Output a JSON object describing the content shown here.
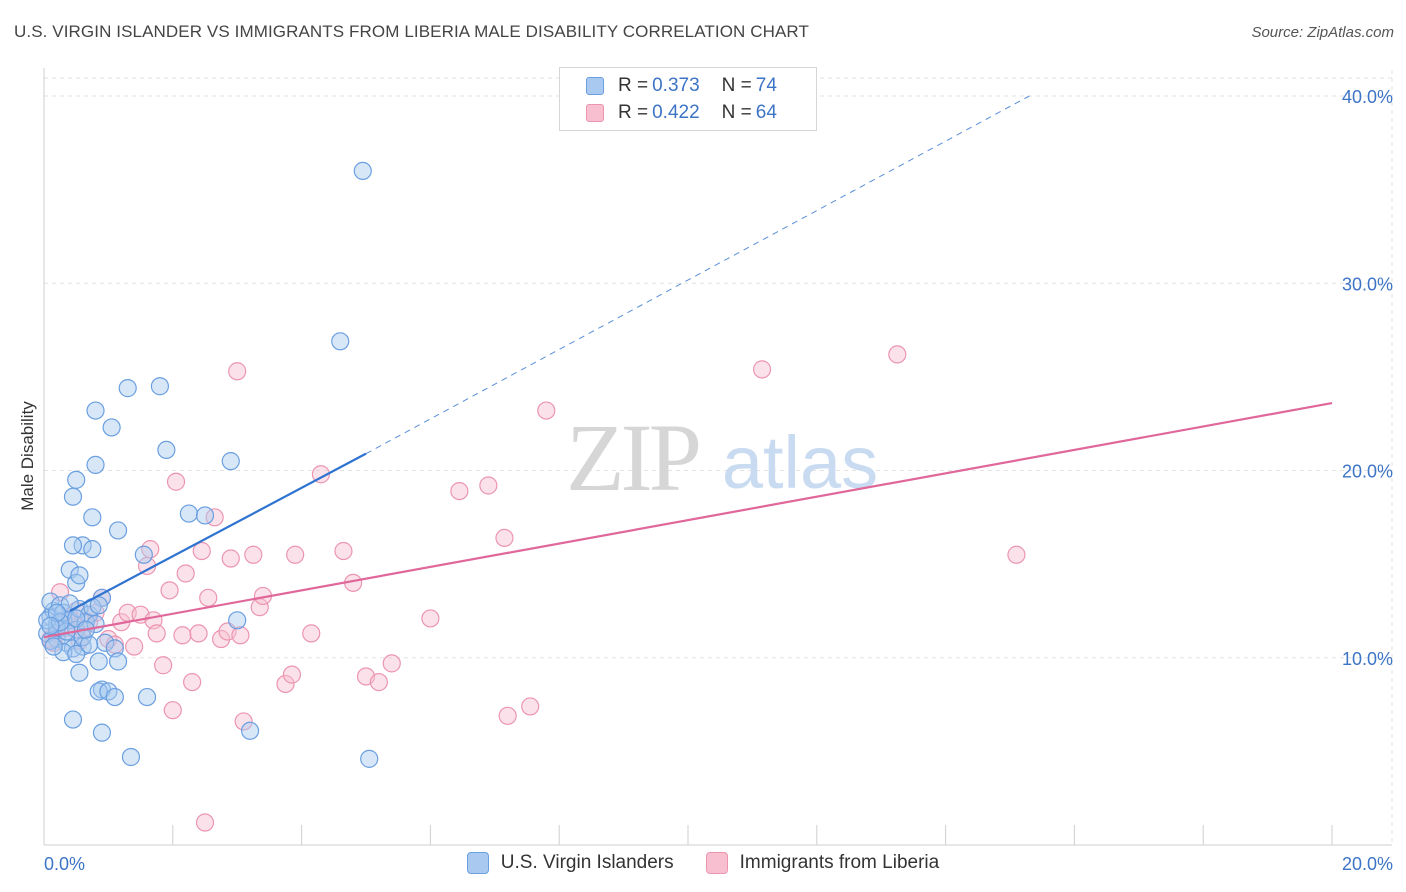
{
  "header": {
    "title": "U.S. VIRGIN ISLANDER VS IMMIGRANTS FROM LIBERIA MALE DISABILITY CORRELATION CHART",
    "source": "Source: ZipAtlas.com"
  },
  "watermark": {
    "zip": "ZIP",
    "atlas": "atlas"
  },
  "legend_top": [
    {
      "r_label": "R = ",
      "r_value": "0.373",
      "n_label": "N = ",
      "n_value": "74"
    },
    {
      "r_label": "R = ",
      "r_value": "0.422",
      "n_label": "N = ",
      "n_value": "64"
    }
  ],
  "colors": {
    "blue_fill": "#a9c9f0",
    "blue_stroke": "#6a9fe0",
    "blue_line": "#2f73d1",
    "pink_fill": "#f7bfd0",
    "pink_stroke": "#ec95b0",
    "pink_line": "#e0679a",
    "tick_text": "#3d74c6",
    "grid": "#e2e2e2"
  },
  "chart_data": {
    "type": "scatter",
    "title": "U.S. VIRGIN ISLANDER VS IMMIGRANTS FROM LIBERIA MALE DISABILITY CORRELATION CHART",
    "xlabel": "",
    "ylabel": "Male Disability",
    "xlim": [
      0,
      20
    ],
    "ylim": [
      0,
      40
    ],
    "x_tick_labels": [
      "0.0%",
      "20.0%"
    ],
    "y_ticks": [
      10,
      20,
      30,
      40
    ],
    "y_tick_labels": [
      "10.0%",
      "20.0%",
      "30.0%",
      "40.0%"
    ],
    "grid": true,
    "legend_position": "bottom",
    "series": [
      {
        "name": "U.S. Virgin Islanders",
        "color": "#6a9fe0",
        "points": [
          [
            0.1,
            12.2
          ],
          [
            0.15,
            12.5
          ],
          [
            0.2,
            11.8
          ],
          [
            0.3,
            12.0
          ],
          [
            0.1,
            13.0
          ],
          [
            0.25,
            12.8
          ],
          [
            0.4,
            12.0
          ],
          [
            0.5,
            11.5
          ],
          [
            0.05,
            11.3
          ],
          [
            0.2,
            11.0
          ],
          [
            0.35,
            10.8
          ],
          [
            0.45,
            10.5
          ],
          [
            0.6,
            10.6
          ],
          [
            0.55,
            12.6
          ],
          [
            0.7,
            12.3
          ],
          [
            0.65,
            11.9
          ],
          [
            0.8,
            11.8
          ],
          [
            0.9,
            13.2
          ],
          [
            0.75,
            12.7
          ],
          [
            0.3,
            10.3
          ],
          [
            0.5,
            10.2
          ],
          [
            0.55,
            9.2
          ],
          [
            0.95,
            10.8
          ],
          [
            1.1,
            10.5
          ],
          [
            1.15,
            9.8
          ],
          [
            0.85,
            9.8
          ],
          [
            0.4,
            14.7
          ],
          [
            0.5,
            14.0
          ],
          [
            0.55,
            14.4
          ],
          [
            0.6,
            16.0
          ],
          [
            0.75,
            15.8
          ],
          [
            0.45,
            16.0
          ],
          [
            0.75,
            17.5
          ],
          [
            1.15,
            16.8
          ],
          [
            0.45,
            18.6
          ],
          [
            0.5,
            19.5
          ],
          [
            0.8,
            20.3
          ],
          [
            0.8,
            23.2
          ],
          [
            1.05,
            22.3
          ],
          [
            1.3,
            24.4
          ],
          [
            1.8,
            24.5
          ],
          [
            1.9,
            21.1
          ],
          [
            2.25,
            17.7
          ],
          [
            2.5,
            17.6
          ],
          [
            2.9,
            20.5
          ],
          [
            1.55,
            15.5
          ],
          [
            3.0,
            12.0
          ],
          [
            0.9,
            8.3
          ],
          [
            0.85,
            8.2
          ],
          [
            1.0,
            8.2
          ],
          [
            1.1,
            7.9
          ],
          [
            1.6,
            7.9
          ],
          [
            0.45,
            6.7
          ],
          [
            0.9,
            6.0
          ],
          [
            1.35,
            4.7
          ],
          [
            3.2,
            6.1
          ],
          [
            5.05,
            4.6
          ],
          [
            4.6,
            26.9
          ],
          [
            4.95,
            36.0
          ],
          [
            0.1,
            10.9
          ],
          [
            0.2,
            11.6
          ],
          [
            0.3,
            12.4
          ],
          [
            0.15,
            10.6
          ],
          [
            0.35,
            11.4
          ],
          [
            0.4,
            12.9
          ],
          [
            0.6,
            11.1
          ],
          [
            0.7,
            10.7
          ],
          [
            0.05,
            12.0
          ],
          [
            0.25,
            11.9
          ],
          [
            0.5,
            12.1
          ],
          [
            0.65,
            11.5
          ],
          [
            0.85,
            12.8
          ],
          [
            0.2,
            12.4
          ],
          [
            0.1,
            11.7
          ]
        ]
      },
      {
        "name": "Immigrants from Liberia",
        "color": "#ec95b0",
        "points": [
          [
            0.1,
            11.0
          ],
          [
            0.2,
            11.3
          ],
          [
            0.3,
            11.8
          ],
          [
            0.4,
            12.2
          ],
          [
            0.5,
            12.5
          ],
          [
            0.15,
            10.8
          ],
          [
            0.6,
            11.5
          ],
          [
            0.7,
            11.9
          ],
          [
            0.8,
            12.4
          ],
          [
            0.9,
            13.2
          ],
          [
            0.25,
            13.5
          ],
          [
            1.0,
            11.0
          ],
          [
            1.1,
            10.7
          ],
          [
            1.2,
            11.9
          ],
          [
            1.3,
            12.4
          ],
          [
            1.4,
            10.6
          ],
          [
            1.5,
            12.3
          ],
          [
            1.6,
            14.9
          ],
          [
            1.65,
            15.8
          ],
          [
            1.7,
            12.0
          ],
          [
            1.75,
            11.3
          ],
          [
            1.85,
            9.6
          ],
          [
            1.95,
            13.6
          ],
          [
            2.05,
            19.4
          ],
          [
            2.15,
            11.2
          ],
          [
            2.2,
            14.5
          ],
          [
            2.3,
            8.7
          ],
          [
            2.4,
            11.3
          ],
          [
            2.45,
            15.7
          ],
          [
            2.55,
            13.2
          ],
          [
            2.65,
            17.5
          ],
          [
            2.75,
            11.0
          ],
          [
            2.85,
            11.4
          ],
          [
            2.9,
            15.3
          ],
          [
            3.0,
            25.3
          ],
          [
            3.05,
            11.2
          ],
          [
            3.1,
            6.6
          ],
          [
            3.25,
            15.5
          ],
          [
            3.35,
            12.7
          ],
          [
            3.4,
            13.3
          ],
          [
            3.75,
            8.6
          ],
          [
            3.85,
            9.1
          ],
          [
            3.9,
            15.5
          ],
          [
            4.15,
            11.3
          ],
          [
            4.3,
            19.8
          ],
          [
            4.65,
            15.7
          ],
          [
            4.8,
            14.0
          ],
          [
            5.0,
            9.0
          ],
          [
            5.2,
            8.7
          ],
          [
            5.4,
            9.7
          ],
          [
            6.0,
            12.1
          ],
          [
            6.45,
            18.9
          ],
          [
            6.9,
            19.2
          ],
          [
            7.15,
            16.4
          ],
          [
            7.2,
            6.9
          ],
          [
            7.55,
            7.4
          ],
          [
            7.8,
            23.2
          ],
          [
            11.15,
            25.4
          ],
          [
            13.25,
            26.2
          ],
          [
            15.1,
            15.5
          ],
          [
            2.5,
            1.2
          ],
          [
            2.0,
            7.2
          ],
          [
            0.35,
            11.6
          ],
          [
            0.55,
            10.9
          ]
        ]
      }
    ],
    "trend_lines": [
      {
        "series": "U.S. Virgin Islanders",
        "solid": [
          [
            0.4,
            12.5
          ],
          [
            5.0,
            20.9
          ]
        ],
        "dashed": [
          [
            5.0,
            20.9
          ],
          [
            15.3,
            40.0
          ]
        ]
      },
      {
        "series": "Immigrants from Liberia",
        "solid": [
          [
            0.0,
            11.1
          ],
          [
            20.0,
            23.6
          ]
        ]
      }
    ]
  }
}
